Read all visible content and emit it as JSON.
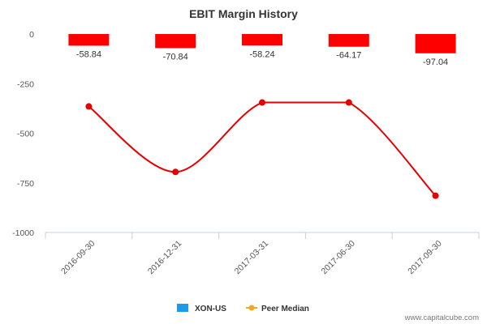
{
  "chart_data": {
    "type": "bar",
    "title": "EBIT Margin History",
    "xlabel": "",
    "ylabel": "",
    "categories": [
      "2016-09-30",
      "2016-12-31",
      "2017-03-31",
      "2017-06-30",
      "2017-09-30"
    ],
    "ylim": [
      -1000,
      0
    ],
    "yticks": [
      0,
      -250,
      -500,
      -750,
      -1000
    ],
    "series": [
      {
        "name": "XON-US",
        "type": "bar",
        "color": "#ff0000",
        "values": [
          -58.84,
          -70.84,
          -58.24,
          -64.17,
          -97.04
        ],
        "labels": [
          "-58.84",
          "-70.84",
          "-58.24",
          "-64.17",
          "-97.04"
        ]
      },
      {
        "name": "Peer Median",
        "type": "line",
        "color": "#e60000",
        "values": [
          -365,
          -695,
          -345,
          -345,
          -815
        ]
      }
    ],
    "legend": {
      "placement": "bottom-center",
      "items": [
        {
          "label": "XON-US",
          "color": "#1e9be8",
          "marker": "square"
        },
        {
          "label": "Peer Median",
          "color": "#f5a623",
          "marker": "line-circle"
        }
      ]
    },
    "grid": false
  },
  "watermark": "www.capitalcube.com"
}
